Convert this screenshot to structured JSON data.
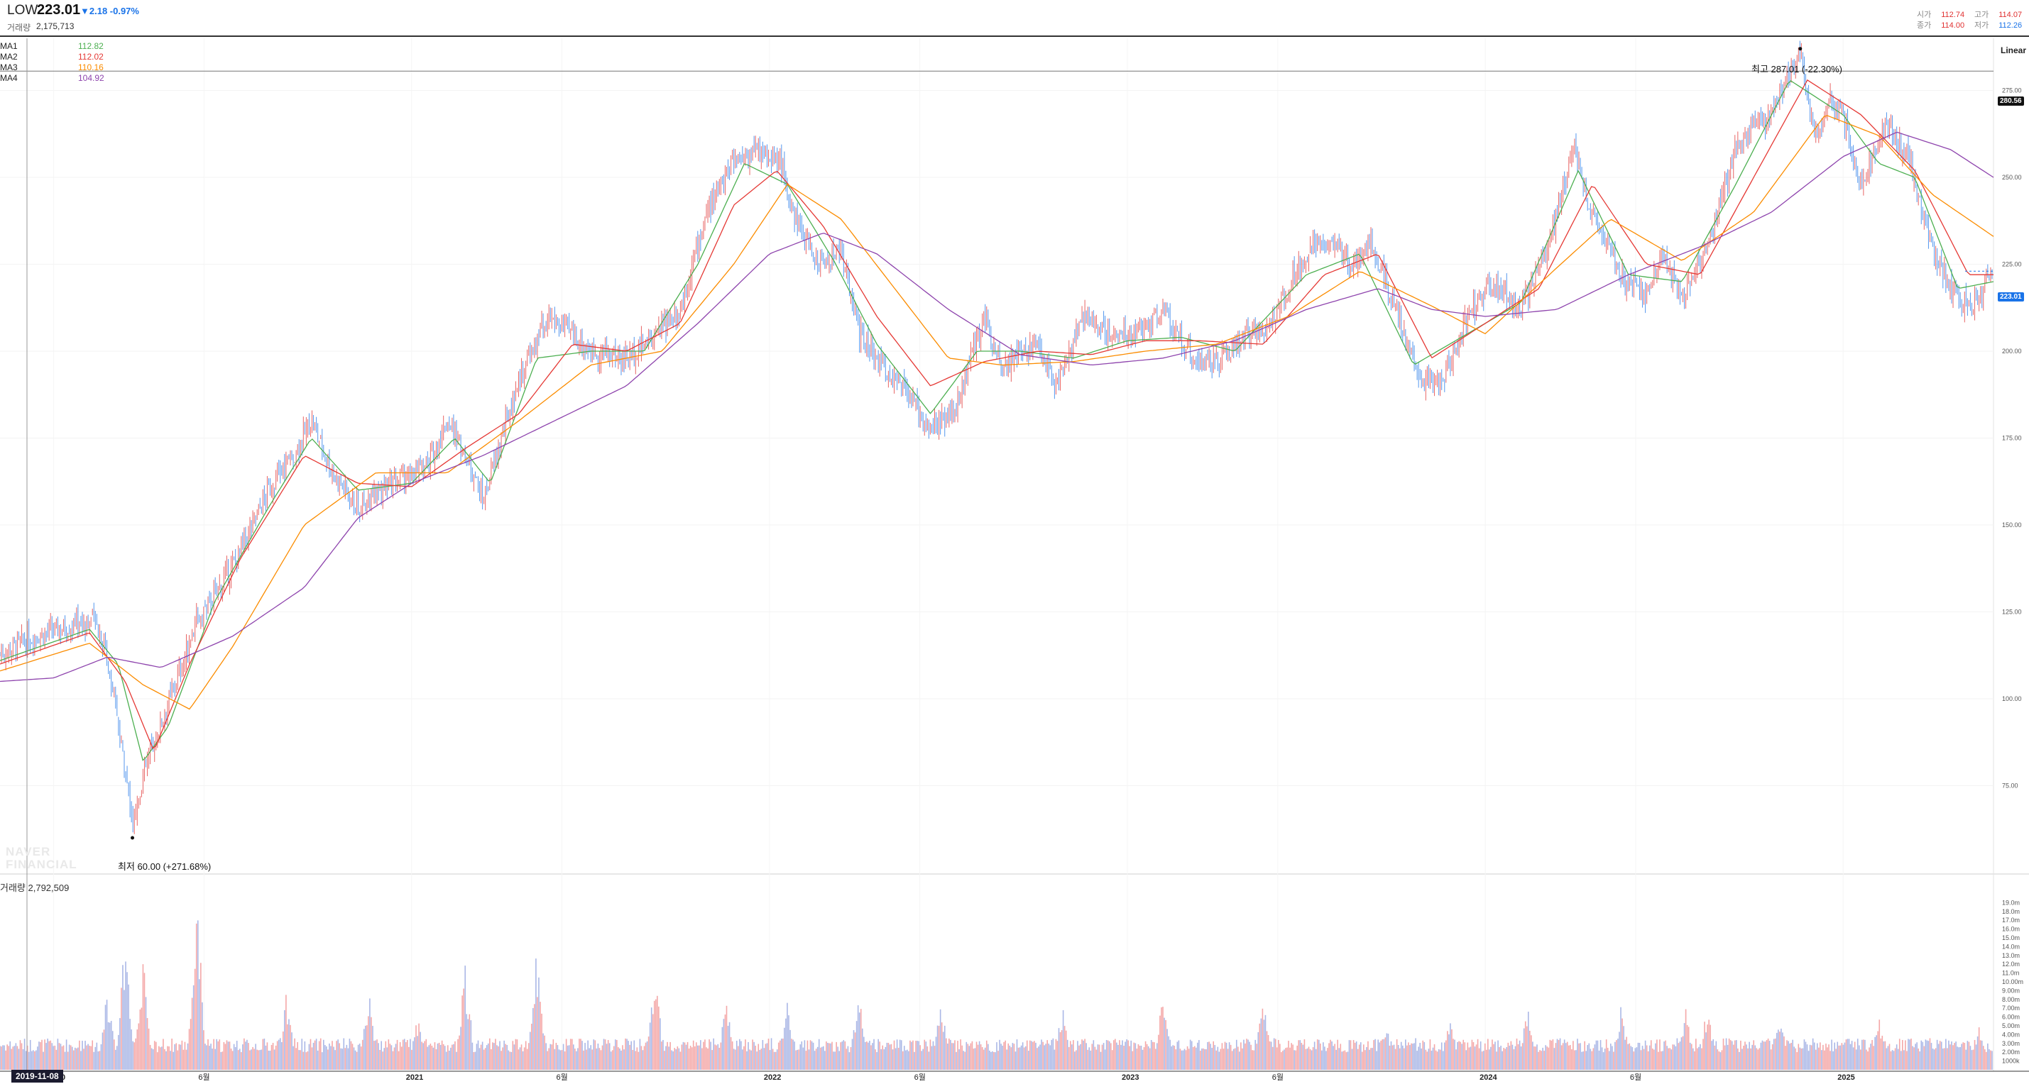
{
  "header": {
    "ticker": "LOW",
    "price": "223.01",
    "change": "▼2.18 -0.97%",
    "volume_label": "거래량",
    "volume_value": "2,175,713",
    "ohlc": [
      {
        "label": "시가",
        "value": "112.74",
        "color": "#e03131"
      },
      {
        "label": "고가",
        "value": "114.07",
        "color": "#e03131"
      },
      {
        "label": "종가",
        "value": "114.00",
        "color": "#e03131"
      },
      {
        "label": "저가",
        "value": "112.26",
        "color": "#1a73e8"
      }
    ]
  },
  "ma_legend": [
    {
      "name": "MA1",
      "value": "112.82",
      "color": "#4caf50"
    },
    {
      "name": "MA2",
      "value": "112.02",
      "color": "#e53935"
    },
    {
      "name": "MA3",
      "value": "110.16",
      "color": "#fb8c00"
    },
    {
      "name": "MA4",
      "value": "104.92",
      "color": "#8e44ad"
    }
  ],
  "scale_mode": "Linear",
  "annotations": {
    "high": "최고 287.01 (-22.30%)",
    "low": "최저 60.00 (+271.68%)"
  },
  "badges": {
    "crosshair_price": "280.56",
    "last_price": "223.01",
    "crosshair_date": "2019-11-08"
  },
  "volume_title": "거래량 2,792,509",
  "watermark": [
    "NAVER",
    "FINANCIAL"
  ],
  "colors": {
    "up": "#e03131",
    "down": "#1a73e8",
    "vol_up": "#f4a7a7",
    "vol_down": "#aab7e6"
  },
  "chart_data": {
    "type": "line",
    "title": "LOW",
    "xlabel": "",
    "ylabel": "",
    "ylim": [
      50,
      290
    ],
    "y_ticks": [
      "75.00",
      "100.00",
      "125.00",
      "150.00",
      "175.00",
      "200.00",
      "225.00",
      "250.00",
      "275.00"
    ],
    "x_ticks": [
      {
        "label": "2020",
        "t": 2020.0
      },
      {
        "label": "6월",
        "t": 2020.42
      },
      {
        "label": "2021",
        "t": 2021.0
      },
      {
        "label": "6월",
        "t": 2021.42
      },
      {
        "label": "2022",
        "t": 2022.0
      },
      {
        "label": "6월",
        "t": 2022.42
      },
      {
        "label": "2023",
        "t": 2023.0
      },
      {
        "label": "6월",
        "t": 2023.42
      },
      {
        "label": "2024",
        "t": 2024.0
      },
      {
        "label": "6월",
        "t": 2024.42
      },
      {
        "label": "2025",
        "t": 2025.0
      }
    ],
    "x_range": [
      2019.85,
      2025.42
    ],
    "series": [
      {
        "name": "LOW",
        "points": [
          [
            2019.85,
            113
          ],
          [
            2019.95,
            118
          ],
          [
            2020.05,
            121
          ],
          [
            2020.12,
            123
          ],
          [
            2020.15,
            112
          ],
          [
            2020.2,
            80
          ],
          [
            2020.22,
            62
          ],
          [
            2020.25,
            78
          ],
          [
            2020.3,
            93
          ],
          [
            2020.4,
            122
          ],
          [
            2020.5,
            138
          ],
          [
            2020.6,
            160
          ],
          [
            2020.68,
            172
          ],
          [
            2020.72,
            180
          ],
          [
            2020.78,
            165
          ],
          [
            2020.85,
            155
          ],
          [
            2020.95,
            162
          ],
          [
            2021.05,
            168
          ],
          [
            2021.1,
            180
          ],
          [
            2021.15,
            170
          ],
          [
            2021.2,
            157
          ],
          [
            2021.3,
            192
          ],
          [
            2021.38,
            210
          ],
          [
            2021.45,
            205
          ],
          [
            2021.5,
            200
          ],
          [
            2021.6,
            198
          ],
          [
            2021.68,
            205
          ],
          [
            2021.75,
            212
          ],
          [
            2021.82,
            238
          ],
          [
            2021.9,
            255
          ],
          [
            2021.97,
            258
          ],
          [
            2022.03,
            254
          ],
          [
            2022.08,
            236
          ],
          [
            2022.14,
            225
          ],
          [
            2022.2,
            229
          ],
          [
            2022.25,
            205
          ],
          [
            2022.3,
            198
          ],
          [
            2022.38,
            188
          ],
          [
            2022.45,
            178
          ],
          [
            2022.52,
            183
          ],
          [
            2022.6,
            210
          ],
          [
            2022.65,
            196
          ],
          [
            2022.75,
            202
          ],
          [
            2022.8,
            190
          ],
          [
            2022.88,
            210
          ],
          [
            2022.95,
            205
          ],
          [
            2023.02,
            205
          ],
          [
            2023.1,
            212
          ],
          [
            2023.18,
            198
          ],
          [
            2023.25,
            196
          ],
          [
            2023.32,
            204
          ],
          [
            2023.4,
            208
          ],
          [
            2023.48,
            225
          ],
          [
            2023.55,
            233
          ],
          [
            2023.62,
            225
          ],
          [
            2023.68,
            232
          ],
          [
            2023.75,
            212
          ],
          [
            2023.82,
            192
          ],
          [
            2023.88,
            190
          ],
          [
            2023.95,
            210
          ],
          [
            2024.02,
            220
          ],
          [
            2024.1,
            212
          ],
          [
            2024.18,
            232
          ],
          [
            2024.25,
            260
          ],
          [
            2024.3,
            238
          ],
          [
            2024.38,
            222
          ],
          [
            2024.45,
            216
          ],
          [
            2024.5,
            228
          ],
          [
            2024.55,
            215
          ],
          [
            2024.62,
            230
          ],
          [
            2024.7,
            258
          ],
          [
            2024.8,
            268
          ],
          [
            2024.88,
            287
          ],
          [
            2024.92,
            262
          ],
          [
            2024.96,
            272
          ],
          [
            2025.0,
            268
          ],
          [
            2025.05,
            248
          ],
          [
            2025.12,
            266
          ],
          [
            2025.18,
            256
          ],
          [
            2025.25,
            230
          ],
          [
            2025.3,
            218
          ],
          [
            2025.35,
            212
          ],
          [
            2025.42,
            223
          ]
        ]
      },
      {
        "name": "MA1",
        "points": [
          [
            2019.85,
            111
          ],
          [
            2020.1,
            120
          ],
          [
            2020.18,
            110
          ],
          [
            2020.25,
            82
          ],
          [
            2020.32,
            92
          ],
          [
            2020.45,
            128
          ],
          [
            2020.6,
            155
          ],
          [
            2020.72,
            175
          ],
          [
            2020.85,
            160
          ],
          [
            2021.0,
            162
          ],
          [
            2021.12,
            175
          ],
          [
            2021.22,
            162
          ],
          [
            2021.35,
            198
          ],
          [
            2021.5,
            200
          ],
          [
            2021.65,
            200
          ],
          [
            2021.8,
            225
          ],
          [
            2021.93,
            254
          ],
          [
            2022.05,
            248
          ],
          [
            2022.18,
            226
          ],
          [
            2022.3,
            202
          ],
          [
            2022.45,
            182
          ],
          [
            2022.58,
            200
          ],
          [
            2022.7,
            200
          ],
          [
            2022.85,
            198
          ],
          [
            2023.0,
            203
          ],
          [
            2023.15,
            204
          ],
          [
            2023.3,
            200
          ],
          [
            2023.5,
            222
          ],
          [
            2023.65,
            228
          ],
          [
            2023.8,
            196
          ],
          [
            2023.95,
            205
          ],
          [
            2024.1,
            214
          ],
          [
            2024.26,
            252
          ],
          [
            2024.4,
            222
          ],
          [
            2024.55,
            220
          ],
          [
            2024.7,
            248
          ],
          [
            2024.85,
            278
          ],
          [
            2025.0,
            268
          ],
          [
            2025.1,
            254
          ],
          [
            2025.2,
            250
          ],
          [
            2025.32,
            218
          ],
          [
            2025.42,
            220
          ]
        ]
      },
      {
        "name": "MA2",
        "points": [
          [
            2019.85,
            110
          ],
          [
            2020.1,
            119
          ],
          [
            2020.2,
            105
          ],
          [
            2020.28,
            85
          ],
          [
            2020.38,
            110
          ],
          [
            2020.52,
            140
          ],
          [
            2020.7,
            170
          ],
          [
            2020.85,
            162
          ],
          [
            2021.0,
            161
          ],
          [
            2021.15,
            172
          ],
          [
            2021.3,
            182
          ],
          [
            2021.45,
            202
          ],
          [
            2021.6,
            200
          ],
          [
            2021.75,
            208
          ],
          [
            2021.9,
            242
          ],
          [
            2022.02,
            252
          ],
          [
            2022.15,
            236
          ],
          [
            2022.3,
            210
          ],
          [
            2022.45,
            190
          ],
          [
            2022.6,
            197
          ],
          [
            2022.75,
            200
          ],
          [
            2022.9,
            199
          ],
          [
            2023.05,
            203
          ],
          [
            2023.2,
            203
          ],
          [
            2023.38,
            202
          ],
          [
            2023.55,
            222
          ],
          [
            2023.7,
            228
          ],
          [
            2023.85,
            198
          ],
          [
            2024.0,
            208
          ],
          [
            2024.15,
            218
          ],
          [
            2024.3,
            248
          ],
          [
            2024.45,
            225
          ],
          [
            2024.6,
            222
          ],
          [
            2024.75,
            250
          ],
          [
            2024.9,
            278
          ],
          [
            2025.05,
            268
          ],
          [
            2025.2,
            252
          ],
          [
            2025.35,
            222
          ],
          [
            2025.42,
            222
          ]
        ]
      },
      {
        "name": "MA3",
        "points": [
          [
            2019.85,
            108
          ],
          [
            2020.1,
            116
          ],
          [
            2020.25,
            104
          ],
          [
            2020.38,
            97
          ],
          [
            2020.5,
            115
          ],
          [
            2020.7,
            150
          ],
          [
            2020.9,
            165
          ],
          [
            2021.1,
            165
          ],
          [
            2021.3,
            180
          ],
          [
            2021.5,
            196
          ],
          [
            2021.7,
            200
          ],
          [
            2021.9,
            225
          ],
          [
            2022.05,
            248
          ],
          [
            2022.2,
            238
          ],
          [
            2022.35,
            218
          ],
          [
            2022.5,
            198
          ],
          [
            2022.65,
            196
          ],
          [
            2022.85,
            197
          ],
          [
            2023.05,
            200
          ],
          [
            2023.25,
            202
          ],
          [
            2023.45,
            210
          ],
          [
            2023.65,
            223
          ],
          [
            2023.85,
            213
          ],
          [
            2024.0,
            205
          ],
          [
            2024.2,
            224
          ],
          [
            2024.35,
            238
          ],
          [
            2024.55,
            226
          ],
          [
            2024.75,
            240
          ],
          [
            2024.95,
            268
          ],
          [
            2025.1,
            262
          ],
          [
            2025.25,
            245
          ],
          [
            2025.42,
            233
          ]
        ]
      },
      {
        "name": "MA4",
        "points": [
          [
            2019.85,
            105
          ],
          [
            2020.0,
            106
          ],
          [
            2020.15,
            112
          ],
          [
            2020.3,
            109
          ],
          [
            2020.5,
            118
          ],
          [
            2020.7,
            132
          ],
          [
            2020.85,
            152
          ],
          [
            2021.0,
            162
          ],
          [
            2021.2,
            170
          ],
          [
            2021.4,
            180
          ],
          [
            2021.6,
            190
          ],
          [
            2021.8,
            208
          ],
          [
            2022.0,
            228
          ],
          [
            2022.15,
            234
          ],
          [
            2022.3,
            228
          ],
          [
            2022.5,
            212
          ],
          [
            2022.7,
            199
          ],
          [
            2022.9,
            196
          ],
          [
            2023.1,
            198
          ],
          [
            2023.3,
            203
          ],
          [
            2023.5,
            212
          ],
          [
            2023.7,
            218
          ],
          [
            2023.85,
            212
          ],
          [
            2024.0,
            210
          ],
          [
            2024.2,
            212
          ],
          [
            2024.4,
            222
          ],
          [
            2024.6,
            230
          ],
          [
            2024.8,
            240
          ],
          [
            2025.0,
            256
          ],
          [
            2025.15,
            263
          ],
          [
            2025.3,
            258
          ],
          [
            2025.42,
            250
          ]
        ]
      }
    ],
    "volume": {
      "ylim": [
        0,
        20
      ],
      "unit": "m",
      "y_ticks": [
        "1000k",
        "2.00m",
        "3.00m",
        "4.00m",
        "5.00m",
        "6.00m",
        "7.00m",
        "8.00m",
        "9.00m",
        "10.00m",
        "11.0m",
        "12.0m",
        "13.0m",
        "14.0m",
        "15.0m",
        "16.0m",
        "17.0m",
        "18.0m",
        "19.0m"
      ],
      "spikes": [
        [
          2020.08,
          3.5
        ],
        [
          2020.15,
          9.5
        ],
        [
          2020.2,
          15.5
        ],
        [
          2020.25,
          13
        ],
        [
          2020.4,
          19.5
        ],
        [
          2020.65,
          9
        ],
        [
          2020.88,
          10
        ],
        [
          2021.02,
          7
        ],
        [
          2021.15,
          12
        ],
        [
          2021.35,
          14
        ],
        [
          2021.68,
          12
        ],
        [
          2021.88,
          9
        ],
        [
          2022.05,
          8
        ],
        [
          2022.25,
          9
        ],
        [
          2022.48,
          8
        ],
        [
          2022.82,
          8
        ],
        [
          2023.1,
          9
        ],
        [
          2023.38,
          9
        ],
        [
          2023.72,
          6
        ],
        [
          2023.9,
          6
        ],
        [
          2024.12,
          8
        ],
        [
          2024.38,
          8
        ],
        [
          2024.56,
          7
        ],
        [
          2024.62,
          7.5
        ],
        [
          2024.82,
          7.5
        ],
        [
          2025.1,
          6
        ],
        [
          2025.38,
          5
        ]
      ]
    }
  }
}
